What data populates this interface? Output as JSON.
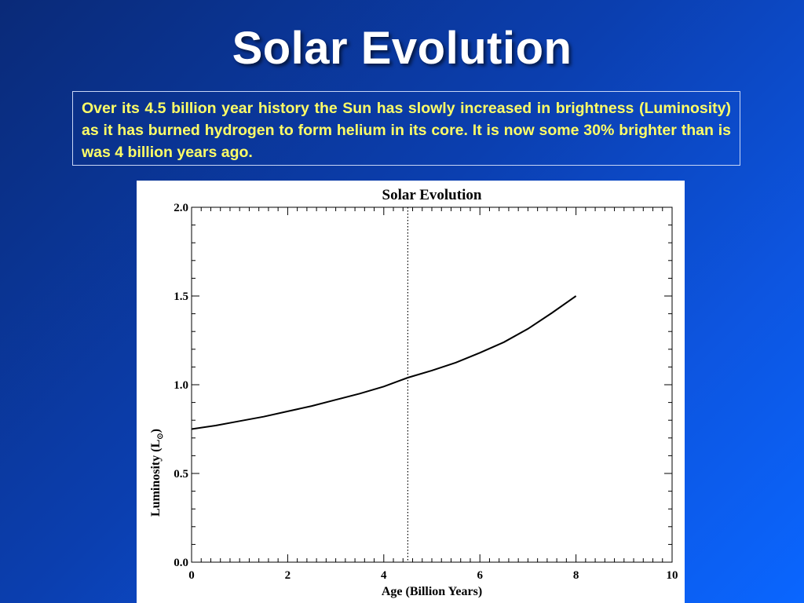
{
  "slide": {
    "title": "Solar Evolution",
    "description": "Over its 4.5 billion year history the Sun has slowly increased in brightness (Luminosity) as it has burned hydrogen to form helium in its core. It is now some 30% brighter than is was 4 billion years ago."
  },
  "colors": {
    "title_text": "#ffffff",
    "description_text": "#ffff66",
    "line": "#000000"
  },
  "chart_data": {
    "type": "line",
    "title": "Solar Evolution",
    "xlabel": "Age (Billion Years)",
    "ylabel_main": "Luminosity (L",
    "ylabel_sub": "⊙",
    "ylabel_close": ")",
    "xlim": [
      0,
      10
    ],
    "ylim": [
      0.0,
      2.0
    ],
    "x_ticks": [
      0,
      2,
      4,
      6,
      8,
      10
    ],
    "x_tick_labels": [
      "0",
      "2",
      "4",
      "6",
      "8",
      "10"
    ],
    "y_ticks": [
      0.0,
      0.5,
      1.0,
      1.5,
      2.0
    ],
    "y_tick_labels": [
      "0.0",
      "0.5",
      "1.0",
      "1.5",
      "2.0"
    ],
    "grid": false,
    "reference_line": {
      "x": 4.5,
      "style": "dotted"
    },
    "series": [
      {
        "x": [
          0,
          0.5,
          1,
          1.5,
          2,
          2.5,
          3,
          3.5,
          4,
          4.5,
          5,
          5.5,
          6,
          6.5,
          7,
          7.5,
          8
        ],
        "y": [
          0.75,
          0.77,
          0.795,
          0.82,
          0.85,
          0.88,
          0.915,
          0.95,
          0.99,
          1.04,
          1.08,
          1.125,
          1.18,
          1.24,
          1.315,
          1.405,
          1.5
        ]
      }
    ]
  }
}
